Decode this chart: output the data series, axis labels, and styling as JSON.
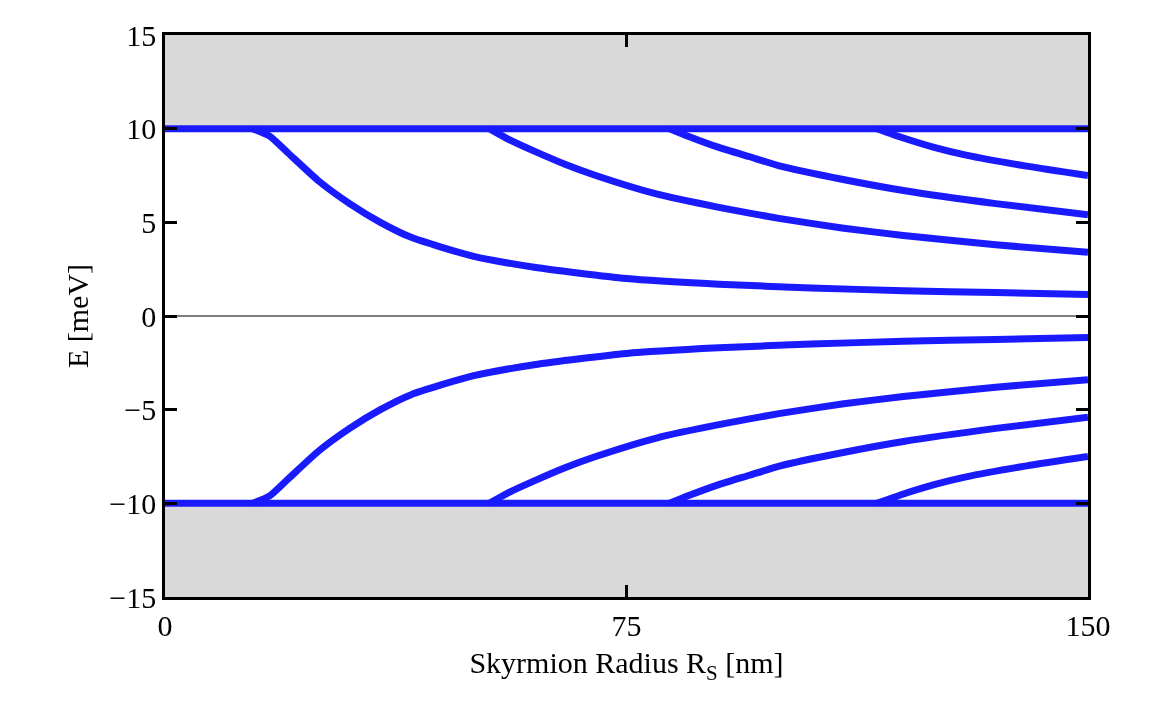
{
  "chart_data": {
    "type": "line",
    "xlabel": "Skyrmion Radius R$_{S}$ [nm]",
    "ylabel": "E [meV]",
    "xlim": [
      0,
      150
    ],
    "xticks": [
      0,
      75,
      150
    ],
    "ylim": [
      -15,
      15
    ],
    "yticks": [
      -15,
      -10,
      -5,
      0,
      5,
      10,
      15
    ],
    "grid": false,
    "marker": "none",
    "line_style": "solid",
    "bands": [
      {
        "axis": "y",
        "from": 10,
        "to": 15,
        "color": "#d9d9d9"
      },
      {
        "axis": "y",
        "from": -15,
        "to": -10,
        "color": "#d9d9d9"
      }
    ],
    "ref_lines": [
      {
        "axis": "y",
        "value": 0,
        "color": "#000000"
      }
    ],
    "series": [
      {
        "color": "#1a1aff",
        "x": [
          0,
          150
        ],
        "values": [
          10,
          10
        ]
      },
      {
        "color": "#1a1aff",
        "x": [
          0,
          150
        ],
        "values": [
          -10,
          -10
        ]
      },
      {
        "color": "#1a1aff",
        "x": [
          14.2,
          17,
          20,
          25,
          30,
          35,
          40,
          50,
          60,
          75,
          90,
          105,
          120,
          135,
          150
        ],
        "values": [
          10,
          9.6,
          8.7,
          7.2,
          6.0,
          5.0,
          4.2,
          3.2,
          2.6,
          2.0,
          1.7,
          1.5,
          1.35,
          1.25,
          1.15
        ]
      },
      {
        "color": "#1a1aff",
        "x": [
          52.7,
          56,
          60,
          65,
          70,
          80,
          90,
          100,
          110,
          120,
          135,
          150
        ],
        "values": [
          10,
          9.4,
          8.8,
          8.1,
          7.5,
          6.5,
          5.8,
          5.2,
          4.7,
          4.3,
          3.8,
          3.4
        ]
      },
      {
        "color": "#1a1aff",
        "x": [
          82,
          85,
          90,
          95,
          100,
          110,
          120,
          135,
          150
        ],
        "values": [
          10,
          9.6,
          9.0,
          8.5,
          8.0,
          7.3,
          6.7,
          6.0,
          5.4
        ]
      },
      {
        "color": "#1a1aff",
        "x": [
          115.7,
          120,
          125,
          130,
          140,
          150
        ],
        "values": [
          10,
          9.5,
          9.0,
          8.6,
          8.0,
          7.5
        ]
      },
      {
        "color": "#1a1aff",
        "x": [
          14.2,
          17,
          20,
          25,
          30,
          35,
          40,
          50,
          60,
          75,
          90,
          105,
          120,
          135,
          150
        ],
        "values": [
          -10,
          -9.6,
          -8.7,
          -7.2,
          -6.0,
          -5.0,
          -4.2,
          -3.2,
          -2.6,
          -2.0,
          -1.7,
          -1.5,
          -1.35,
          -1.25,
          -1.15
        ]
      },
      {
        "color": "#1a1aff",
        "x": [
          52.7,
          56,
          60,
          65,
          70,
          80,
          90,
          100,
          110,
          120,
          135,
          150
        ],
        "values": [
          -10,
          -9.4,
          -8.8,
          -8.1,
          -7.5,
          -6.5,
          -5.8,
          -5.2,
          -4.7,
          -4.3,
          -3.8,
          -3.4
        ]
      },
      {
        "color": "#1a1aff",
        "x": [
          82,
          85,
          90,
          95,
          100,
          110,
          120,
          135,
          150
        ],
        "values": [
          -10,
          -9.6,
          -9.0,
          -8.5,
          -8.0,
          -7.3,
          -6.7,
          -6.0,
          -5.4
        ]
      },
      {
        "color": "#1a1aff",
        "x": [
          115.7,
          120,
          125,
          130,
          140,
          150
        ],
        "values": [
          -10,
          -9.5,
          -9.0,
          -8.6,
          -8.0,
          -7.5
        ]
      }
    ]
  }
}
